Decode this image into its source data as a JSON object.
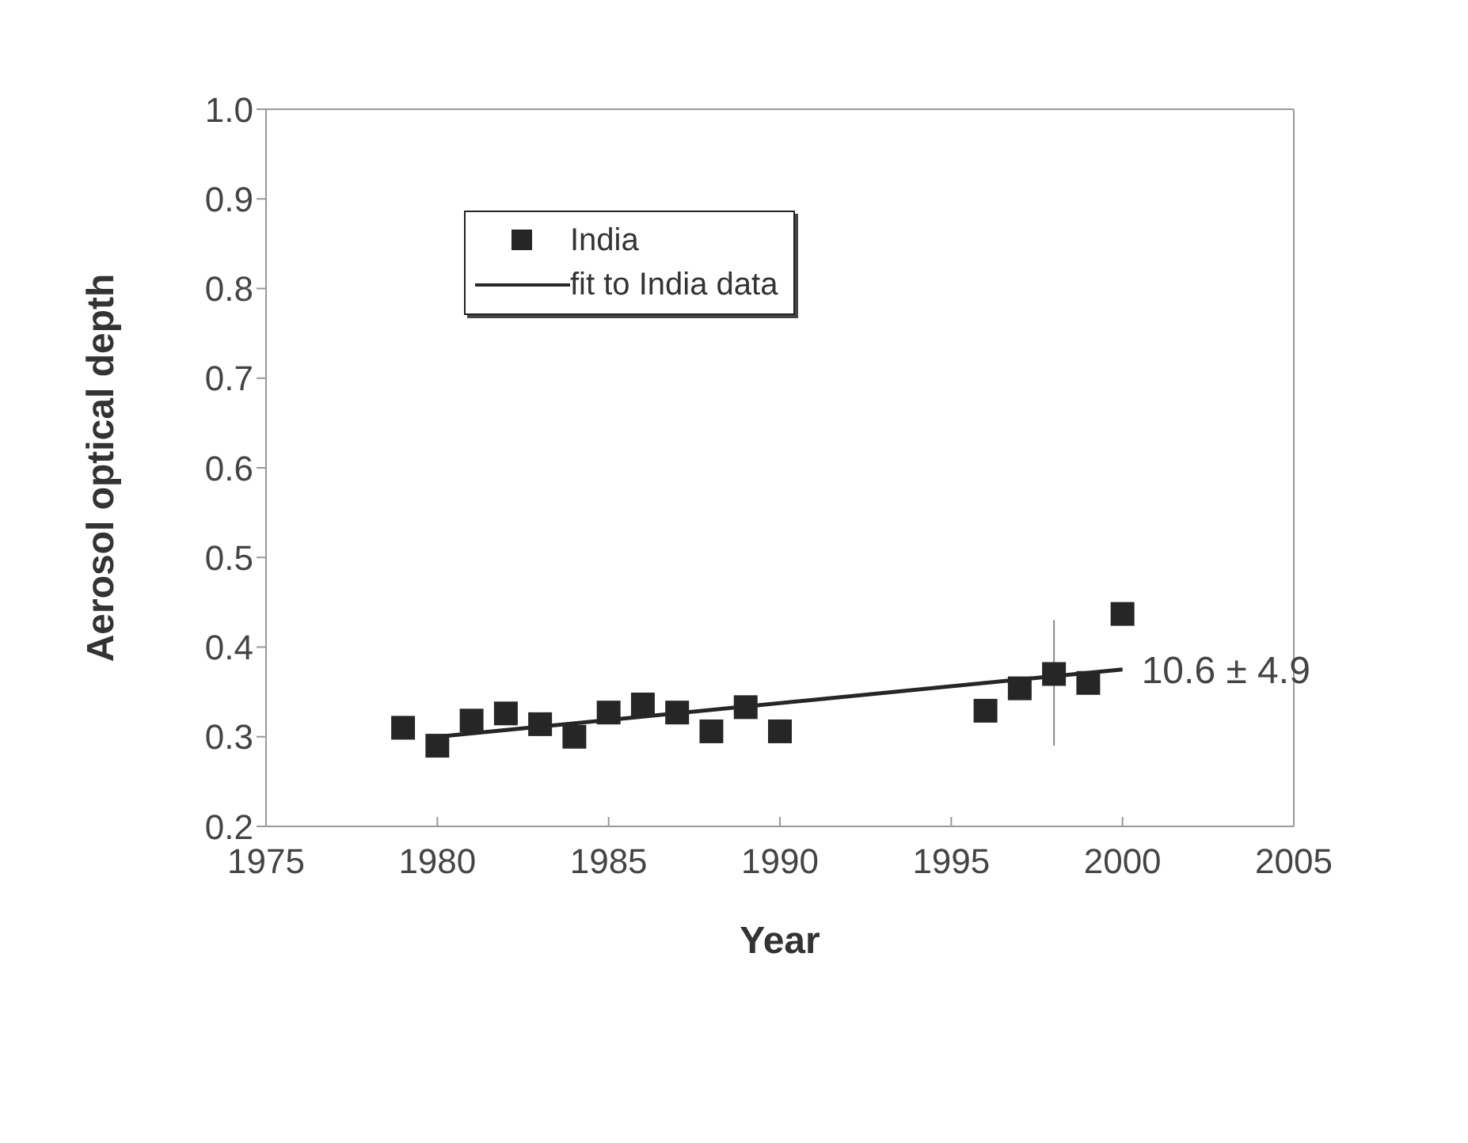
{
  "chart_data": {
    "type": "scatter",
    "xlabel": "Year",
    "ylabel": "Aerosol optical depth",
    "xlim": [
      1975,
      2005
    ],
    "xticks": [
      1975,
      1980,
      1985,
      1990,
      1995,
      2000,
      2005
    ],
    "ylim": [
      0.2,
      1.0
    ],
    "yticks": [
      0.2,
      0.3,
      0.4,
      0.5,
      0.6,
      0.7,
      0.8,
      0.9,
      {
        "value": 1.0,
        "label": "1.0"
      }
    ],
    "grid": false,
    "legend": "top left",
    "series": [
      {
        "name": "India",
        "marker": "square",
        "color": "#262626",
        "x": [
          1979,
          1980,
          1981,
          1982,
          1983,
          1984,
          1985,
          1986,
          1987,
          1988,
          1989,
          1990,
          1996,
          1997,
          1998,
          1999,
          2000
        ],
        "values": [
          0.31,
          0.29,
          0.318,
          0.326,
          0.314,
          0.3,
          0.327,
          0.336,
          0.327,
          0.306,
          0.333,
          0.306,
          0.329,
          0.354,
          0.37,
          0.36,
          0.437
        ],
        "errors": [
          null,
          null,
          null,
          null,
          null,
          null,
          null,
          null,
          null,
          null,
          null,
          null,
          null,
          null,
          [
            0.29,
            0.43
          ],
          null,
          null
        ]
      },
      {
        "name": "fit to India data",
        "type": "line",
        "color": "#262626",
        "x": [
          1980,
          2000
        ],
        "values": [
          0.3,
          0.375
        ]
      }
    ],
    "annotations": [
      {
        "text": "10.6 ± 4.9",
        "x": 2000,
        "y": 0.375
      }
    ]
  }
}
